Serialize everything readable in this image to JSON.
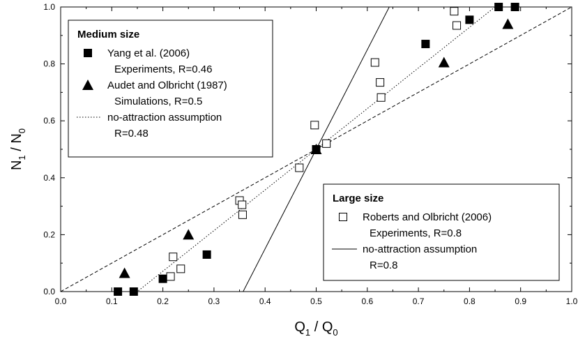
{
  "chart_data": {
    "type": "scatter",
    "title": "",
    "xlabel": "Q₁ / Q₀",
    "ylabel": "N₁ / N₀",
    "xlabel_parts": {
      "a": "Q",
      "a_sub": "1",
      "sep": " / ",
      "b": "Q",
      "b_sub": "0"
    },
    "ylabel_parts": {
      "a": "N",
      "a_sub": "1",
      "sep": " / ",
      "b": "N",
      "b_sub": "0"
    },
    "xlim": [
      0.0,
      1.0
    ],
    "ylim": [
      0.0,
      1.0
    ],
    "x_ticks": [
      "0.0",
      "0.1",
      "0.2",
      "0.3",
      "0.4",
      "0.5",
      "0.6",
      "0.7",
      "0.8",
      "0.9",
      "1.0"
    ],
    "y_ticks": [
      "0.0",
      "0.2",
      "0.4",
      "0.6",
      "0.8",
      "1.0"
    ],
    "grid": false,
    "series": [
      {
        "name": "Yang et al. (2006) Experiments, R=0.46",
        "marker": "filled-square",
        "points": [
          [
            0.112,
            0.0
          ],
          [
            0.143,
            0.0
          ],
          [
            0.2,
            0.045
          ],
          [
            0.286,
            0.13
          ],
          [
            0.5,
            0.5
          ],
          [
            0.714,
            0.87
          ],
          [
            0.8,
            0.955
          ],
          [
            0.857,
            1.0
          ],
          [
            0.889,
            1.0
          ]
        ]
      },
      {
        "name": "Audet and Olbricht (1987) Simulations, R=0.5",
        "marker": "filled-triangle",
        "points": [
          [
            0.125,
            0.065
          ],
          [
            0.25,
            0.2
          ],
          [
            0.5,
            0.5
          ],
          [
            0.75,
            0.805
          ],
          [
            0.875,
            0.94
          ]
        ]
      },
      {
        "name": "Roberts and Olbricht (2006) Experiments, R=0.8",
        "marker": "open-square",
        "points": [
          [
            0.215,
            0.053
          ],
          [
            0.22,
            0.122
          ],
          [
            0.235,
            0.08
          ],
          [
            0.35,
            0.32
          ],
          [
            0.355,
            0.305
          ],
          [
            0.356,
            0.27
          ],
          [
            0.467,
            0.435
          ],
          [
            0.497,
            0.585
          ],
          [
            0.5,
            0.5
          ],
          [
            0.52,
            0.52
          ],
          [
            0.615,
            0.805
          ],
          [
            0.625,
            0.735
          ],
          [
            0.627,
            0.682
          ],
          [
            0.77,
            0.985
          ],
          [
            0.775,
            0.935
          ]
        ]
      }
    ],
    "curves": [
      {
        "name": "no-attraction assumption R=0.48",
        "style": "dotted",
        "points": [
          [
            0.0,
            0.0
          ],
          [
            0.15,
            0.0
          ],
          [
            0.5,
            0.5
          ],
          [
            0.85,
            1.0
          ],
          [
            1.0,
            1.0
          ]
        ]
      },
      {
        "name": "no-attraction assumption R=0.8",
        "style": "solid",
        "points": [
          [
            0.357,
            0.0
          ],
          [
            0.5,
            0.5
          ],
          [
            0.643,
            1.0
          ]
        ]
      },
      {
        "name": "reference diagonal",
        "style": "dashed",
        "points": [
          [
            0.0,
            0.0
          ],
          [
            1.0,
            1.0
          ]
        ]
      }
    ],
    "legends": [
      {
        "title": "Medium size",
        "entries": [
          {
            "marker": "filled-square",
            "line1": "Yang et al. (2006)",
            "line2": "Experiments, R=0.46"
          },
          {
            "marker": "filled-triangle",
            "line1": "Audet and Olbricht (1987)",
            "line2": "Simulations, R=0.5"
          },
          {
            "marker": "dotted",
            "line1": "no-attraction assumption",
            "line2": "R=0.48"
          }
        ]
      },
      {
        "title": "Large size",
        "entries": [
          {
            "marker": "open-square",
            "line1": "Roberts and Olbricht (2006)",
            "line2": "Experiments, R=0.8"
          },
          {
            "marker": "solid",
            "line1": "no-attraction assumption",
            "line2": "R=0.8"
          }
        ]
      }
    ]
  }
}
